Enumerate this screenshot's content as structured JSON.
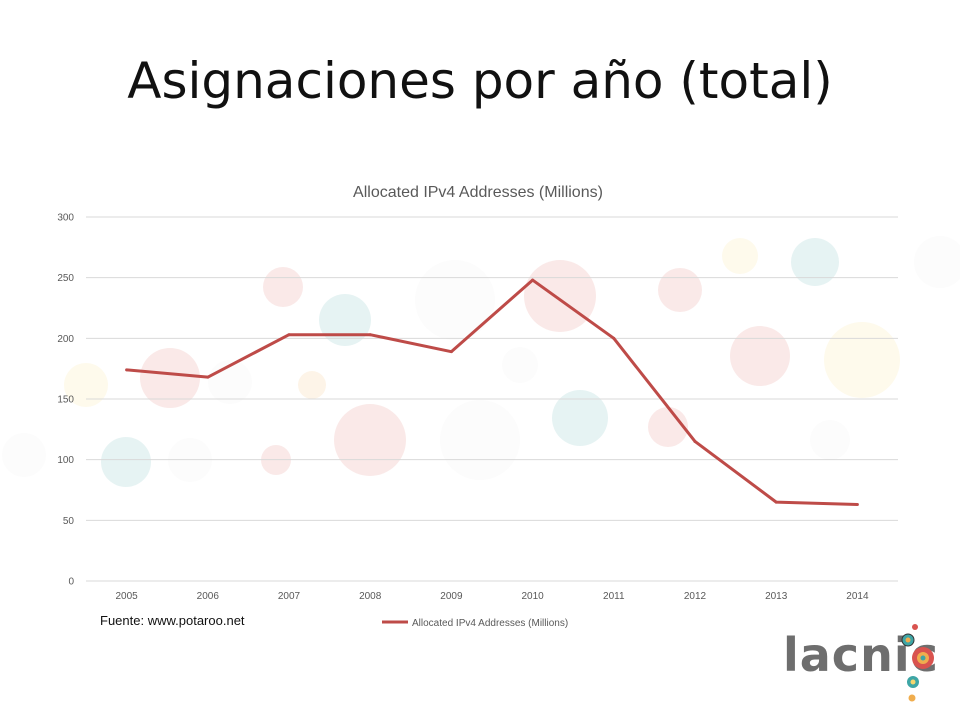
{
  "slide": {
    "title": "Asignaciones por año (total)",
    "source": "Fuente: www.potaroo.net"
  },
  "logo": {
    "text": "lacnic"
  },
  "colors": {
    "line": "#be4b48",
    "grid": "#d9d9d9",
    "axis_text": "#595959",
    "bg_bubbles": [
      "#d9534f",
      "#f0ad4e",
      "#3ea6a6",
      "#f5d76e",
      "#e8e8e8"
    ]
  },
  "chart_data": {
    "type": "line",
    "title": "Allocated IPv4 Addresses (Millions)",
    "categories": [
      "2005",
      "2006",
      "2007",
      "2008",
      "2009",
      "2010",
      "2011",
      "2012",
      "2013",
      "2014"
    ],
    "series": [
      {
        "name": "Allocated IPv4 Addresses (Millions)",
        "values": [
          174,
          168,
          203,
          203,
          189,
          248,
          200,
          115,
          65,
          63
        ]
      }
    ],
    "yticks": [
      "0",
      "50",
      "100",
      "150",
      "200",
      "250",
      "300"
    ],
    "ylim": [
      0,
      300
    ],
    "grid": true,
    "legend": "bottom"
  }
}
